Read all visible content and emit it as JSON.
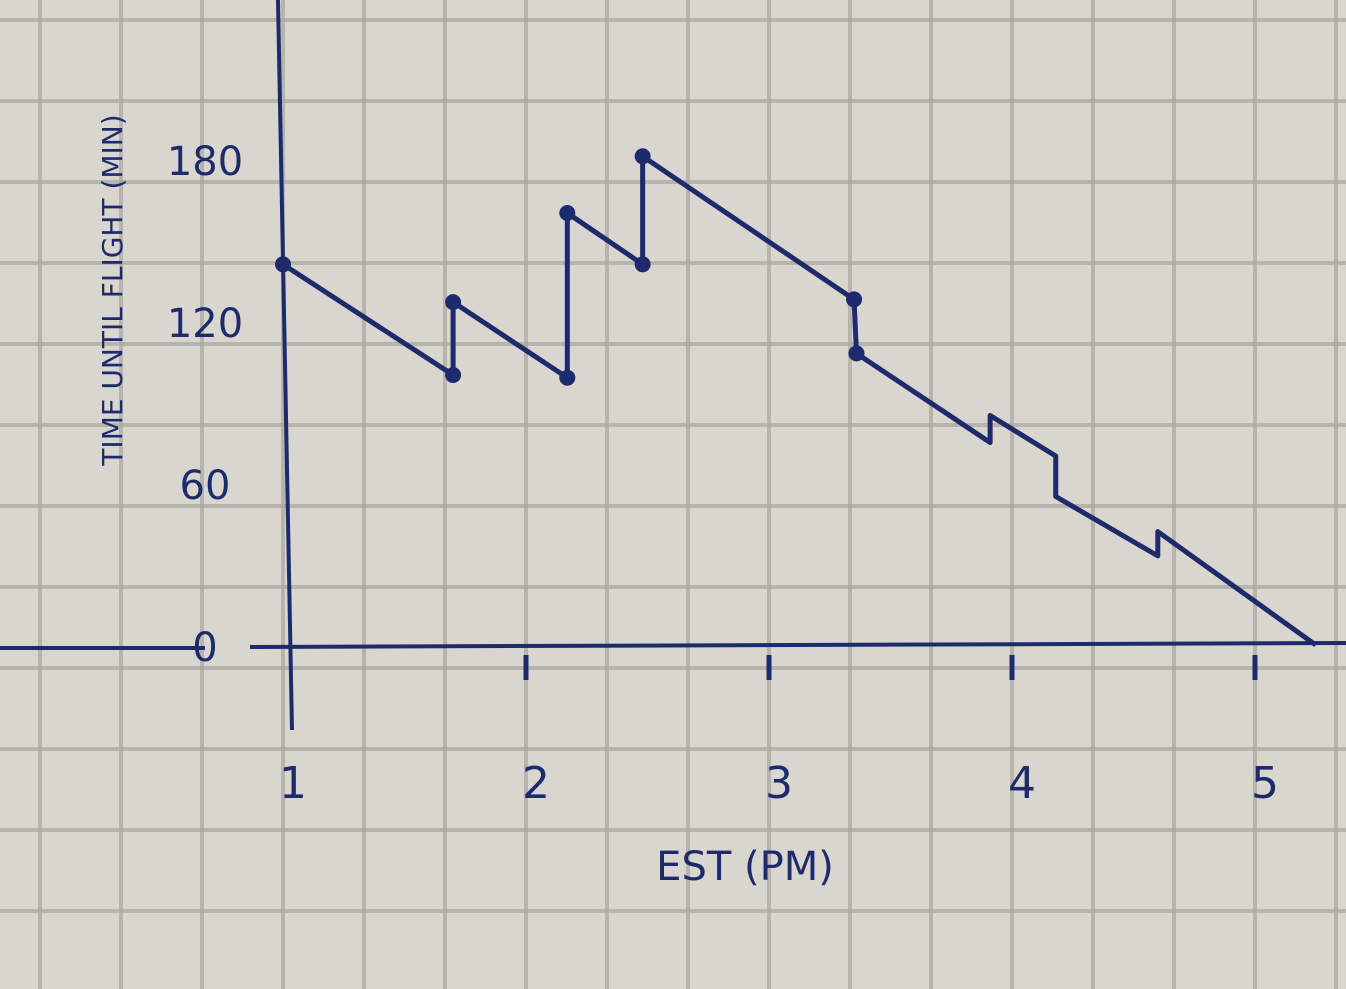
{
  "chart_data": {
    "type": "line",
    "title": "",
    "xlabel": "EST (PM)",
    "ylabel": "TIME UNTIL FLIGHT (MIN)",
    "xlim": [
      1,
      5.3
    ],
    "ylim": [
      0,
      180
    ],
    "x_ticks": [
      1,
      2,
      3,
      4,
      5
    ],
    "x_tick_labels": [
      "1",
      "2",
      "3",
      "4",
      "5"
    ],
    "y_ticks": [
      0,
      60,
      120,
      180
    ],
    "y_tick_labels": [
      "0",
      "60",
      "120",
      "180"
    ],
    "grid": true,
    "line_color": "#1d2a6b",
    "series": [
      {
        "x": [
          1.0,
          1.7,
          1.7,
          2.17,
          2.17,
          2.48,
          2.48,
          3.35,
          3.36,
          3.91,
          3.91,
          4.18,
          4.18,
          4.6,
          4.6,
          5.25
        ],
        "y": [
          141,
          100,
          127,
          99,
          160,
          141,
          181,
          128,
          108,
          75,
          85,
          70,
          55,
          33,
          42,
          0
        ],
        "markers": [
          true,
          true,
          true,
          true,
          true,
          true,
          true,
          true,
          true,
          false,
          false,
          false,
          false,
          false,
          false,
          false
        ]
      }
    ]
  }
}
